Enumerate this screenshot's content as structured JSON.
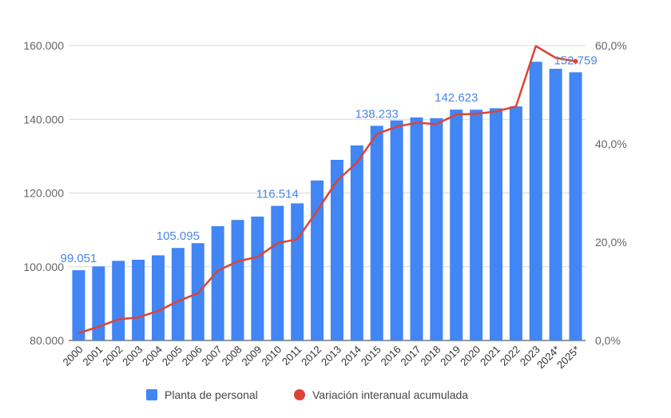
{
  "chart_data": {
    "type": "bar+line",
    "title": "",
    "categories": [
      "2000",
      "2001",
      "2002",
      "2003",
      "2004",
      "2005",
      "2006",
      "2007",
      "2008",
      "2009",
      "2010",
      "2011",
      "2012",
      "2013",
      "2014",
      "2015",
      "2016",
      "2017",
      "2018",
      "2019",
      "2020",
      "2021",
      "2022",
      "2023",
      "2024*",
      "2025*"
    ],
    "series": [
      {
        "name": "Planta de personal",
        "type": "bar",
        "axis": "left",
        "color": "#4285f4",
        "values": [
          99051,
          100100,
          101600,
          101900,
          103100,
          105095,
          106400,
          111000,
          112700,
          113600,
          116514,
          117200,
          123400,
          129000,
          132900,
          138233,
          139700,
          140500,
          140300,
          142623,
          142600,
          143000,
          143500,
          155600,
          153700,
          152759
        ]
      },
      {
        "name": "Variación interanual acumulada",
        "type": "line",
        "axis": "right",
        "color": "#db4437",
        "values": [
          1.5,
          2.8,
          4.3,
          4.7,
          6.0,
          8.0,
          9.6,
          14.2,
          16.1,
          17.0,
          19.8,
          20.6,
          26.4,
          32.5,
          36.2,
          42.0,
          43.5,
          44.3,
          44.0,
          46.0,
          46.1,
          46.6,
          47.6,
          59.9,
          57.5,
          56.8
        ]
      }
    ],
    "y_left": {
      "min": 80000,
      "max": 160000,
      "ticks": [
        "80.000",
        "100.000",
        "120.000",
        "140.000",
        "160.000"
      ]
    },
    "y_right": {
      "min": 0,
      "max": 60,
      "ticks": [
        "0,0%",
        "20,0%",
        "40,0%",
        "60,0%"
      ]
    },
    "data_labels": [
      {
        "category_index": 0,
        "text": "99.051"
      },
      {
        "category_index": 5,
        "text": "105.095"
      },
      {
        "category_index": 10,
        "text": "116.514"
      },
      {
        "category_index": 15,
        "text": "138.233"
      },
      {
        "category_index": 19,
        "text": "142.623"
      },
      {
        "category_index": 25,
        "text": "152.759"
      }
    ],
    "grid": true,
    "legend_position": "bottom"
  }
}
